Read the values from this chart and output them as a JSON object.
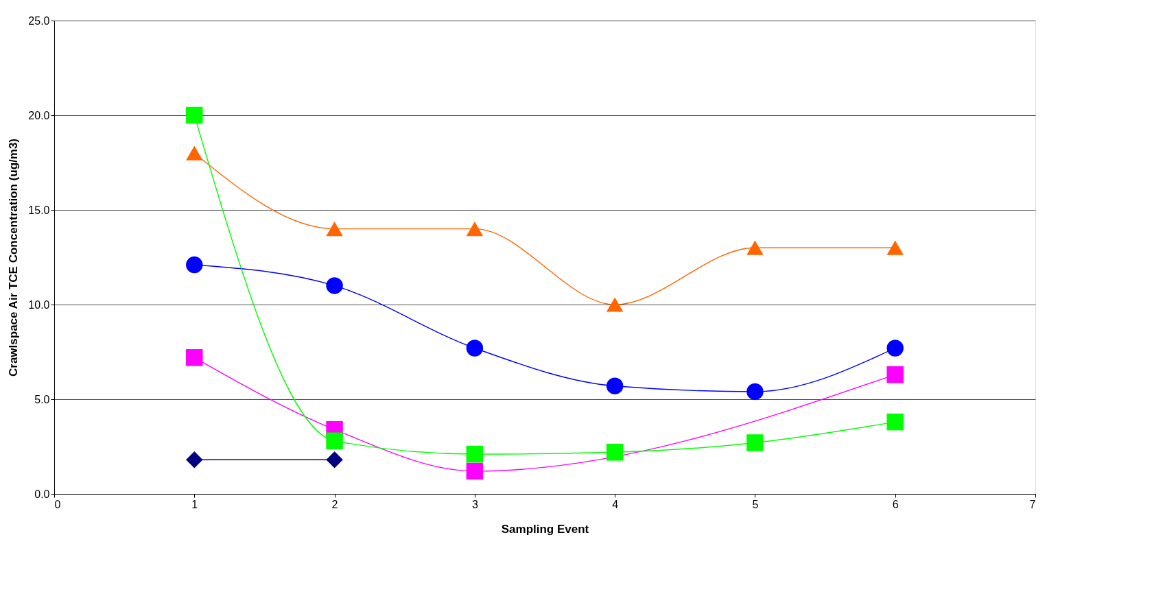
{
  "chart_data": {
    "type": "line",
    "xlabel": "Sampling Event",
    "ylabel": "Crawlspace Air  TCE Concentration (ug/m3)",
    "xlim": [
      0,
      7
    ],
    "xticks": [
      0,
      1,
      2,
      3,
      4,
      5,
      6,
      7
    ],
    "ylim": [
      0,
      25
    ],
    "yticks": [
      {
        "value": 0,
        "label": "0.0"
      },
      {
        "value": 5,
        "label": "5.0"
      },
      {
        "value": 10,
        "label": "10.0"
      },
      {
        "value": 15,
        "label": "15.0"
      },
      {
        "value": 20,
        "label": "20.0"
      },
      {
        "value": 25,
        "label": "25.0"
      }
    ],
    "grid": "y",
    "series": [
      {
        "color": "#ff6600",
        "marker": "triangle",
        "x": [
          1,
          2,
          3,
          4,
          5,
          6
        ],
        "values": [
          18.0,
          14.0,
          14.0,
          10.0,
          13.0,
          13.0
        ]
      },
      {
        "color": "#0000ff",
        "marker": "circle",
        "x": [
          1,
          2,
          3,
          4,
          5,
          6
        ],
        "values": [
          12.1,
          11.0,
          7.7,
          5.7,
          5.4,
          7.7
        ]
      },
      {
        "color": "#ff00ff",
        "marker": "square",
        "x": [
          1,
          2,
          3,
          6
        ],
        "values": [
          7.2,
          3.4,
          1.2,
          6.3
        ]
      },
      {
        "color": "#00ff00",
        "marker": "square",
        "x": [
          1,
          2,
          3,
          4,
          5,
          6
        ],
        "values": [
          20.0,
          2.8,
          2.1,
          2.2,
          2.7,
          3.8
        ]
      },
      {
        "color": "#000080",
        "marker": "diamond",
        "x": [
          1,
          2
        ],
        "values": [
          1.8,
          1.8
        ]
      }
    ]
  }
}
